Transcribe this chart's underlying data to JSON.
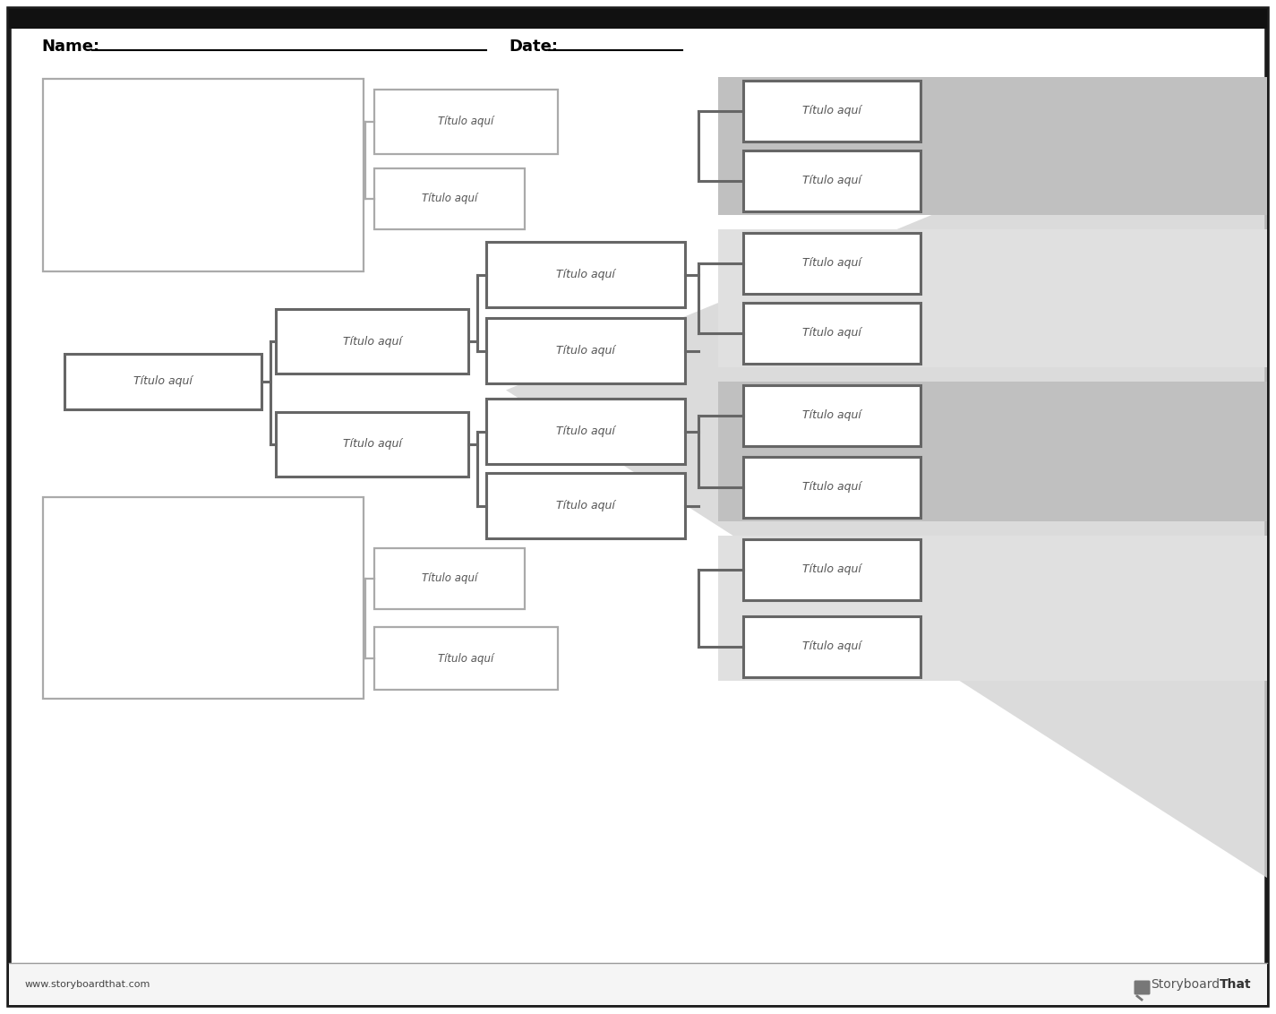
{
  "label_text": "Título aquí",
  "bg_color": "#ffffff",
  "ec_light": "#aaaaaa",
  "ec_dark": "#666666",
  "outer_border": "#1a1a1a",
  "band_dark": "#c0c0c0",
  "band_light": "#e0e0e0",
  "shadow_color": "#d5d5d5",
  "footer_line": "#999999",
  "watermark": "www.storyboardthat.com"
}
